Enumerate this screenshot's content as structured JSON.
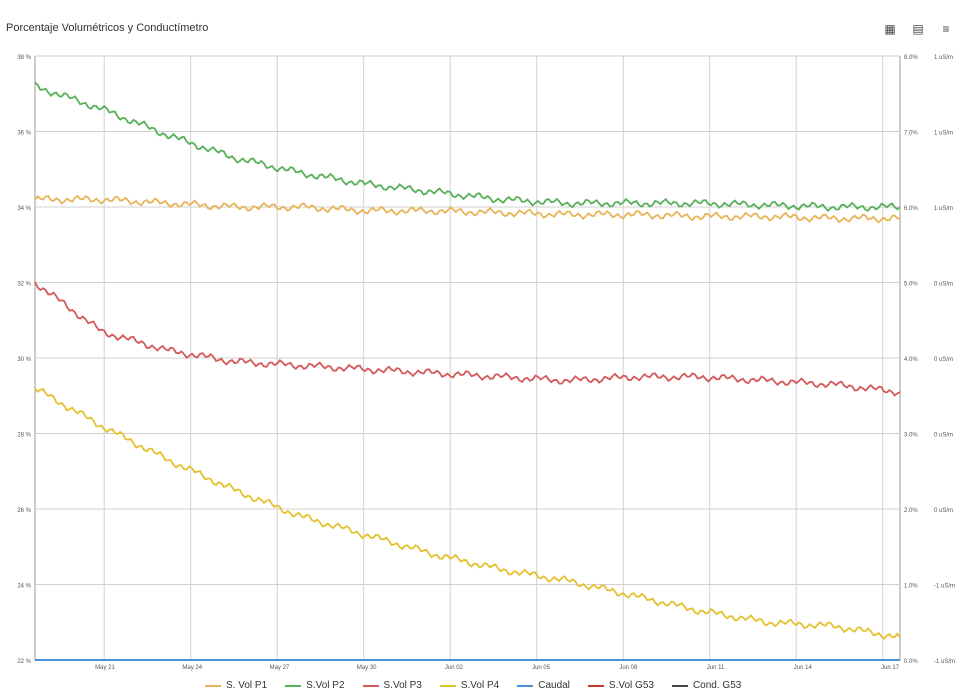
{
  "chart_data": {
    "type": "line",
    "title": "Porcentaje Volumétricos y Conductímetro",
    "x_tick_labels": [
      "May 21",
      "May 24",
      "May 27",
      "May 30",
      "Jun 02",
      "Jun 05",
      "Jun 08",
      "Jun 11",
      "Jun 14",
      "Jun 17"
    ],
    "left_axis": {
      "ticks": [
        "22 %",
        "24 %",
        "26 %",
        "28 %",
        "30 %",
        "32 %",
        "34 %",
        "36 %",
        "38 %"
      ],
      "ylim": [
        22,
        38
      ]
    },
    "right_axis_1": {
      "ticks": [
        "0.0%",
        "1.0%",
        "2.0%",
        "3.0%",
        "4.0%",
        "5.0%",
        "6.0%",
        "7.0%",
        "8.0%"
      ],
      "ylim": [
        0,
        8
      ]
    },
    "right_axis_2": {
      "ticks": [
        "-1 uS/m",
        "-1 uS/m",
        "0 uS/m",
        "0 uS/m",
        "0 uS/m",
        "0 uS/m",
        "1 uS/m",
        "1 uS/m",
        "1 uS/m"
      ]
    },
    "grid": true,
    "series": [
      {
        "name": "S. Vol P1",
        "color": "#e8b458",
        "x": [
          0,
          2,
          4,
          6,
          8,
          10,
          12,
          14,
          16,
          18,
          20,
          22,
          24,
          26
        ],
        "values": [
          34.2,
          34.2,
          34.1,
          34.0,
          34.0,
          33.9,
          33.9,
          33.85,
          33.8,
          33.8,
          33.75,
          33.75,
          33.7,
          33.7
        ]
      },
      {
        "name": "S.Vol P2",
        "color": "#58b058",
        "x": [
          0,
          2,
          4,
          6,
          8,
          10,
          12,
          14,
          16,
          18,
          20,
          22,
          24,
          26
        ],
        "values": [
          37.2,
          36.6,
          35.9,
          35.3,
          34.9,
          34.6,
          34.4,
          34.2,
          34.1,
          34.1,
          34.1,
          34.05,
          34.0,
          34.0
        ]
      },
      {
        "name": "S.Vol P3",
        "color": "#d45a5a",
        "x": [
          0,
          2,
          4,
          6,
          8,
          10,
          12,
          14,
          16,
          18,
          20,
          22,
          24,
          26
        ],
        "values": [
          32.0,
          30.7,
          30.2,
          29.9,
          29.8,
          29.7,
          29.6,
          29.5,
          29.4,
          29.5,
          29.5,
          29.4,
          29.3,
          29.1
        ]
      },
      {
        "name": "S.Vol P4",
        "color": "#e6c02e",
        "x": [
          0,
          2,
          4,
          6,
          8,
          10,
          12,
          14,
          16,
          18,
          20,
          22,
          24,
          26
        ],
        "values": [
          29.2,
          28.2,
          27.3,
          26.5,
          25.8,
          25.3,
          24.8,
          24.4,
          24.1,
          23.7,
          23.3,
          23.0,
          22.9,
          22.6
        ]
      },
      {
        "name": "Caudal",
        "color": "#4a90d9",
        "x": [
          0,
          26
        ],
        "values": [
          22.0,
          22.0
        ]
      },
      {
        "name": "S.Vol G53",
        "color": "#c0392b",
        "x": [],
        "values": []
      },
      {
        "name": "Cond. G53",
        "color": "#444444",
        "x": [],
        "values": []
      }
    ]
  },
  "toolbar": {
    "grid_icon": "▦",
    "doc_icon": "▤",
    "more_icon": "≡"
  }
}
